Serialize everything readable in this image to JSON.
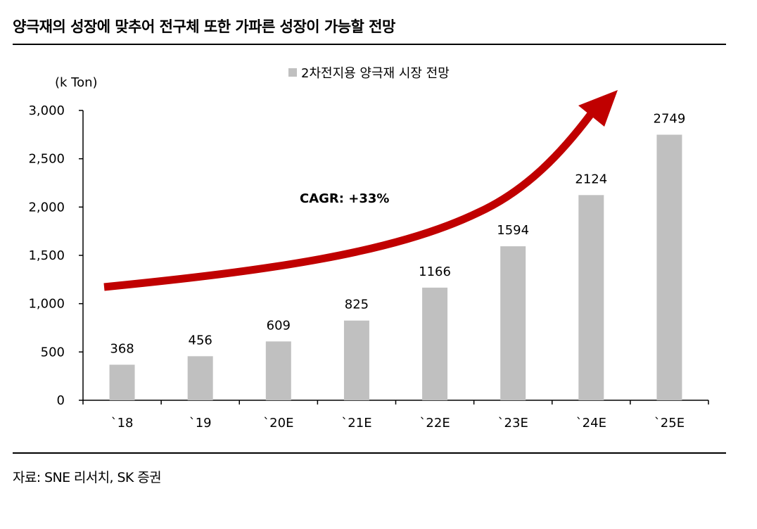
{
  "header": {
    "title": "양극재의 성장에 맞추어 전구체 또한 가파른 성장이 가능할 전망"
  },
  "footer": {
    "source": "자료: SNE 리서치, SK 증권"
  },
  "colors": {
    "bar": "#c0c0c0",
    "arrow": "#c00000",
    "axis": "#000000"
  },
  "chart_data": {
    "type": "bar",
    "title": "",
    "ylabel": "(k Ton)",
    "xlabel": "",
    "ylim": [
      0,
      3000
    ],
    "yticks": [
      0,
      500,
      1000,
      1500,
      2000,
      2500,
      3000
    ],
    "ytick_labels": [
      "0",
      "500",
      "1,000",
      "1,500",
      "2,000",
      "2,500",
      "3,000"
    ],
    "categories": [
      "`18",
      "`19",
      "`20E",
      "`21E",
      "`22E",
      "`23E",
      "`24E",
      "`25E"
    ],
    "series": [
      {
        "name": "2차전지용 양극재 시장 전망",
        "values": [
          368,
          456,
          609,
          825,
          1166,
          1594,
          2124,
          2749
        ]
      }
    ],
    "data_labels": [
      "368",
      "456",
      "609",
      "825",
      "1166",
      "1594",
      "2124",
      "2749"
    ],
    "annotation": "CAGR:  +33%",
    "legend_position": "top-center",
    "grid": false
  }
}
